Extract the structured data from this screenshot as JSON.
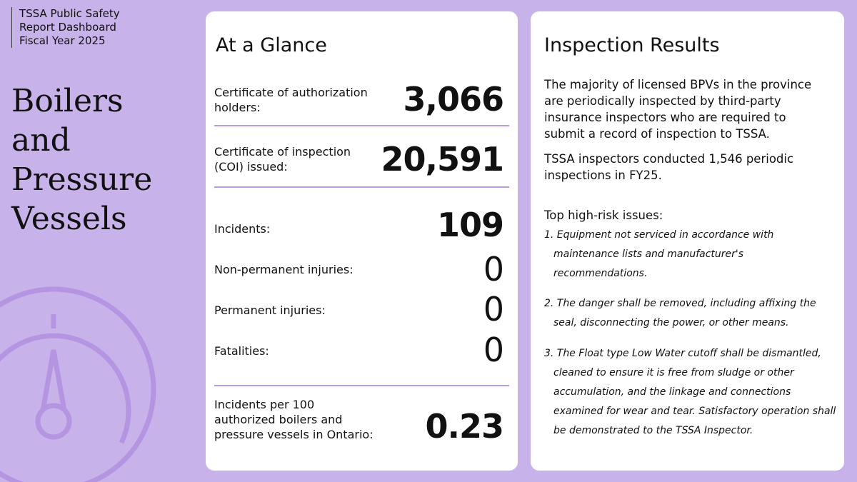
{
  "header": {
    "lines": [
      "TSSA Public Safety",
      "Report Dashboard",
      "Fiscal Year 2025"
    ]
  },
  "title": "Boilers and Pressure Vessels",
  "glance": {
    "title": "At a Glance",
    "rows": [
      {
        "label": "Certificate of authorization holders:",
        "value": "3,066"
      },
      {
        "label": "Certificate of inspection (COI) issued:",
        "value": "20,591"
      },
      {
        "label": "Incidents:",
        "value": "109"
      },
      {
        "label": "Non-permanent injuries:",
        "value": "0"
      },
      {
        "label": "Permanent injuries:",
        "value": "0"
      },
      {
        "label": "Fatalities:",
        "value": "0"
      },
      {
        "label": "Incidents per 100 authorized boilers and pressure vessels in Ontario:",
        "value": "0.23"
      }
    ]
  },
  "inspection": {
    "title": "Inspection Results",
    "paragraphs": [
      "The majority of licensed BPVs in the province are periodically inspected by third-party insurance inspectors who are required to submit a record of inspection to TSSA.",
      "TSSA inspectors conducted 1,546 periodic inspections in FY25."
    ],
    "issues_heading": "Top high-risk issues:",
    "issues": [
      "1. Equipment not serviced in accordance with maintenance lists and manufacturer's recommendations.",
      "2. The danger shall be removed, including affixing the seal, disconnecting the power, or other means.",
      "3. The Float type Low Water cutoff shall be dismantled, cleaned to ensure it is free from sludge or other accumulation, and the linkage and connections examined for wear and tear. Satisfactory operation shall be demonstrated to the TSSA Inspector."
    ]
  }
}
